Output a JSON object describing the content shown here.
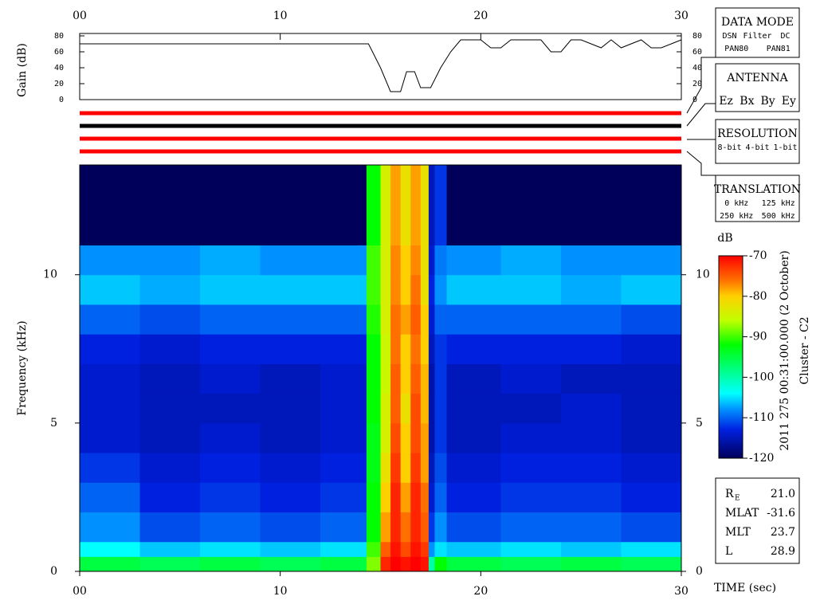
{
  "chart_data": [
    {
      "type": "line",
      "ylabel": "Gain (dB)",
      "color": "#000000",
      "x": [
        0,
        14.4,
        15,
        15.5,
        16,
        16.3,
        16.7,
        17,
        17.5,
        18,
        18.5,
        19,
        20,
        20.5,
        21,
        21.5,
        22,
        23,
        23.5,
        24,
        24.5,
        25,
        26,
        26.5,
        27,
        28,
        28.5,
        29,
        30
      ],
      "values": [
        70,
        70,
        40,
        10,
        10,
        35,
        35,
        15,
        15,
        40,
        60,
        75,
        75,
        65,
        65,
        75,
        75,
        75,
        60,
        60,
        75,
        75,
        65,
        75,
        65,
        75,
        65,
        65,
        75
      ],
      "xlim": [
        0,
        30
      ],
      "ylim": [
        0,
        80
      ],
      "xticks": [
        {
          "value": 0,
          "label": "00"
        },
        10,
        20,
        30
      ],
      "yticks": [
        0,
        20,
        40,
        60,
        80
      ]
    },
    {
      "type": "heatmap",
      "ylabel": "Frequency (kHz)",
      "xlabel": "TIME (sec)",
      "xlim": [
        0,
        30
      ],
      "ylim": [
        0,
        13.7
      ],
      "xticks": [
        {
          "value": 0,
          "label": "00"
        },
        10,
        20,
        30
      ],
      "yticks": [
        0,
        5,
        10
      ],
      "x_edges": [
        0,
        3,
        6,
        9,
        12,
        14.3,
        15,
        15.5,
        16,
        16.5,
        17,
        17.4,
        17.7,
        18.3,
        21,
        24,
        27,
        30
      ],
      "y_edges": [
        0,
        0.5,
        1,
        2,
        3,
        4,
        5,
        6,
        7,
        8,
        9,
        10,
        11,
        13.7
      ],
      "z": [
        [
          -95,
          -96,
          -95,
          -96,
          -95,
          -88,
          -72,
          -70,
          -71,
          -70,
          -71,
          -100,
          -92,
          -95,
          -96,
          -95,
          -96
        ],
        [
          -104,
          -106,
          -105,
          -106,
          -105,
          -90,
          -75,
          -71,
          -74,
          -71,
          -73,
          -108,
          -105,
          -106,
          -105,
          -106,
          -105
        ],
        [
          -108,
          -111,
          -110,
          -111,
          -110,
          -92,
          -78,
          -72,
          -76,
          -72,
          -75,
          -112,
          -108,
          -111,
          -110,
          -110,
          -111
        ],
        [
          -110,
          -113,
          -112,
          -113,
          -112,
          -92,
          -80,
          -72,
          -78,
          -72,
          -76,
          -114,
          -110,
          -113,
          -112,
          -112,
          -113
        ],
        [
          -112,
          -114,
          -113,
          -114,
          -113,
          -93,
          -82,
          -73,
          -80,
          -73,
          -78,
          -115,
          -111,
          -114,
          -113,
          -113,
          -114
        ],
        [
          -114,
          -115,
          -114,
          -115,
          -114,
          -93,
          -84,
          -74,
          -80,
          -74,
          -78,
          -116,
          -112,
          -115,
          -114,
          -114,
          -115
        ],
        [
          -114,
          -115,
          -115,
          -115,
          -114,
          -92,
          -84,
          -75,
          -82,
          -74,
          -79,
          -116,
          -112,
          -115,
          -115,
          -114,
          -115
        ],
        [
          -114,
          -115,
          -114,
          -115,
          -114,
          -92,
          -85,
          -75,
          -80,
          -75,
          -79,
          -116,
          -112,
          -115,
          -114,
          -115,
          -115
        ],
        [
          -113,
          -114,
          -113,
          -113,
          -113,
          -92,
          -85,
          -76,
          -80,
          -76,
          -80,
          -115,
          -112,
          -113,
          -113,
          -113,
          -114
        ],
        [
          -110,
          -111,
          -110,
          -110,
          -110,
          -91,
          -84,
          -76,
          -78,
          -75,
          -80,
          -114,
          -110,
          -110,
          -110,
          -110,
          -111
        ],
        [
          -106,
          -107,
          -106,
          -106,
          -106,
          -90,
          -84,
          -77,
          -80,
          -76,
          -82,
          -113,
          -108,
          -106,
          -106,
          -107,
          -106
        ],
        [
          -108,
          -108,
          -107,
          -108,
          -108,
          -90,
          -84,
          -77,
          -80,
          -77,
          -82,
          -114,
          -109,
          -108,
          -107,
          -108,
          -108
        ],
        [
          -120,
          -120,
          -120,
          -120,
          -120,
          -92,
          -84,
          -78,
          -82,
          -78,
          -82,
          -115,
          -112,
          -120,
          -120,
          -120,
          -120
        ]
      ]
    },
    {
      "type": "colorbar",
      "label": "dB",
      "zlim": [
        -120,
        -70
      ],
      "zticks": [
        -120,
        -110,
        -100,
        -90,
        -80,
        -70
      ]
    }
  ],
  "panels": [
    {
      "title": "DATA MODE",
      "items": [
        [
          "DSN",
          "Filter",
          "DC"
        ],
        [
          "PAN80",
          "PAN81"
        ]
      ],
      "colors": [
        [
          "#ff0000",
          "#00c000",
          "#0000ff"
        ],
        [
          "#000000",
          "#00c0c0"
        ]
      ]
    },
    {
      "title": "ANTENNA",
      "items": [
        [
          "Ez",
          "Bx",
          "By",
          "Ey"
        ]
      ],
      "colors": [
        [
          "#ff0000",
          "#00c000",
          "#0000ff",
          "#000000"
        ]
      ]
    },
    {
      "title": "RESOLUTION",
      "items": [
        [
          "8-bit",
          "4-bit",
          "1-bit"
        ]
      ],
      "colors": [
        [
          "#ff0000",
          "#00c000",
          "#0000ff"
        ]
      ]
    },
    {
      "title": "TRANSLATION",
      "items": [
        [
          "0 kHz",
          "125 kHz"
        ],
        [
          "250 kHz",
          "500 kHz"
        ]
      ],
      "colors": [
        [
          "#ff0000",
          "#00c000"
        ],
        [
          "#0000ff",
          "#000000"
        ]
      ]
    }
  ],
  "date": "2011 275 00:31:00.000 (2 October)",
  "spacecraft": "Cluster - C2",
  "orbit": [
    {
      "label": "R",
      "sub": "E",
      "value": "21.0"
    },
    {
      "label": "MLAT",
      "value": "-31.6"
    },
    {
      "label": "MLT",
      "value": "23.7"
    },
    {
      "label": "L",
      "value": "28.9"
    }
  ]
}
